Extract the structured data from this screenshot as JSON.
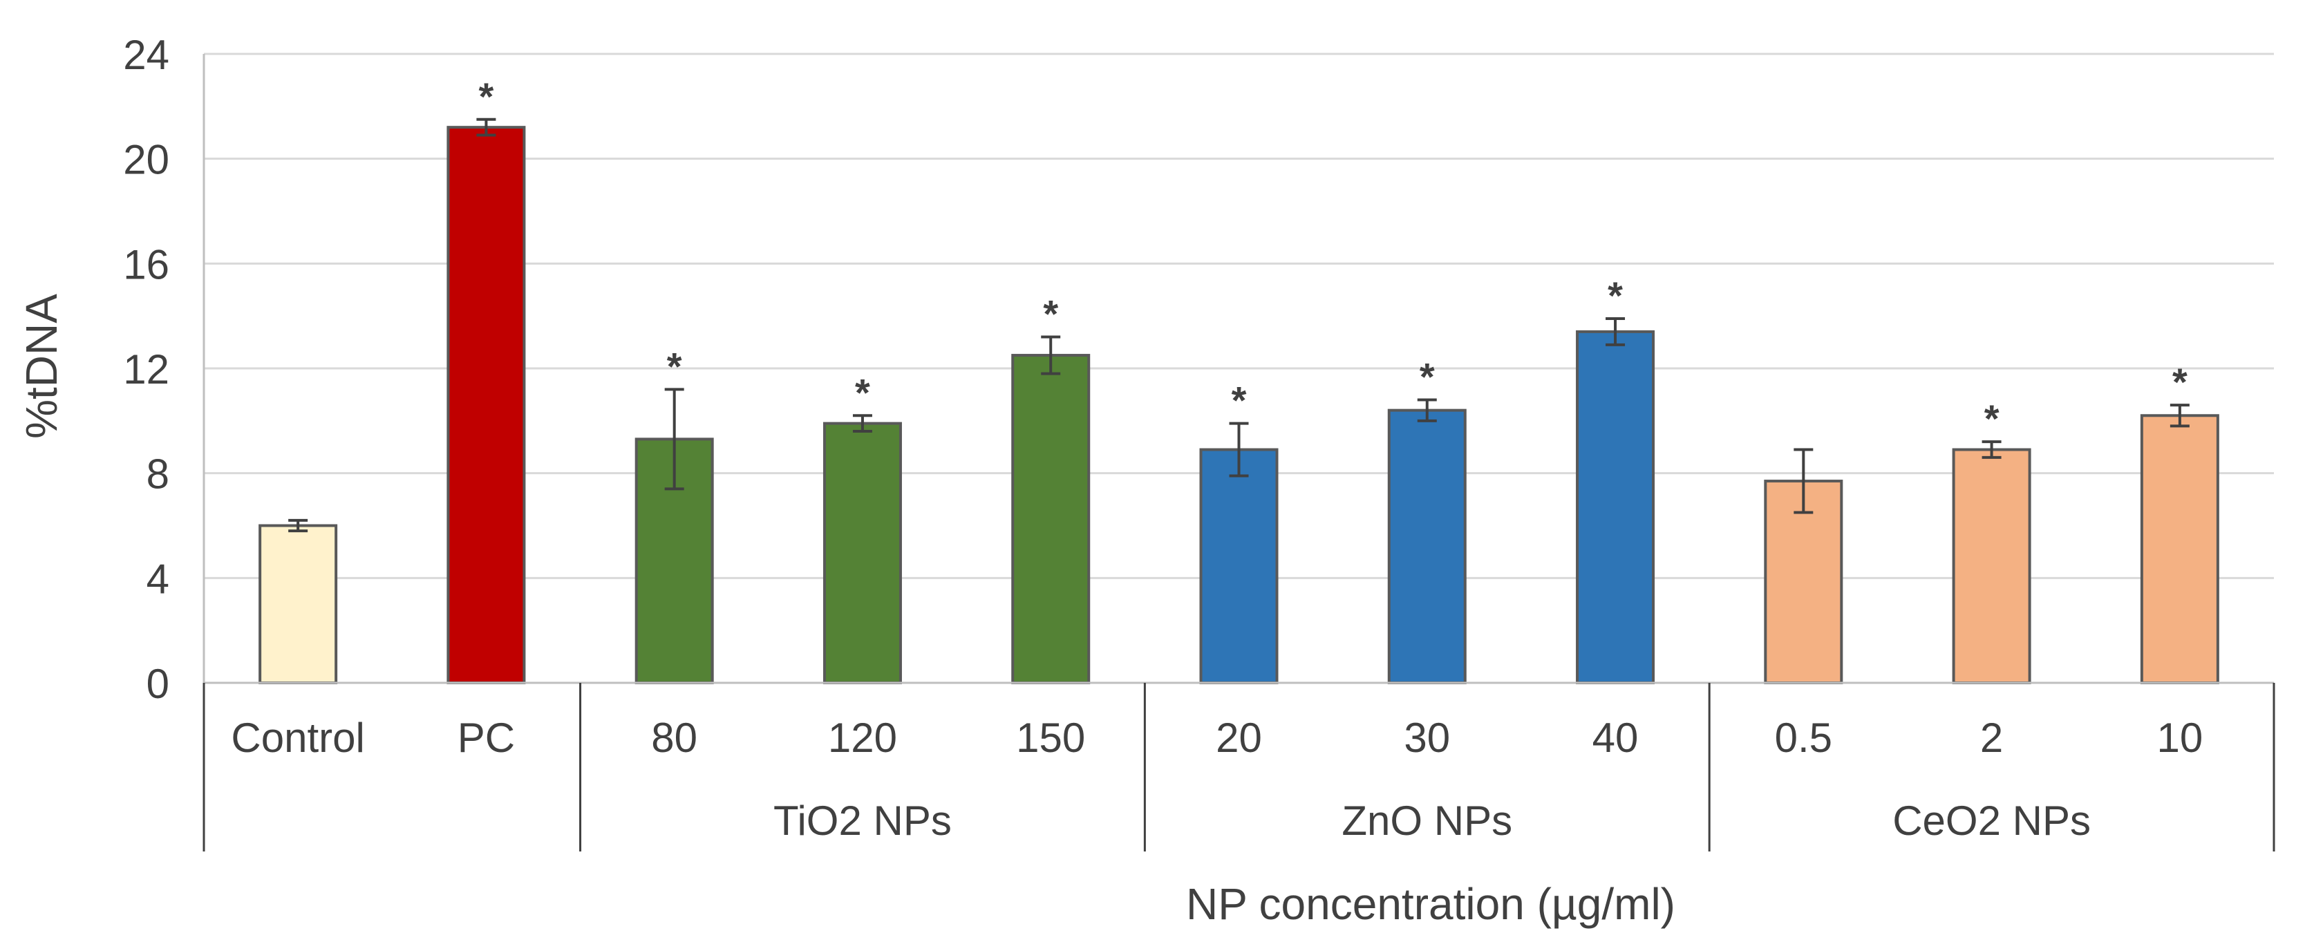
{
  "chart_data": {
    "type": "bar",
    "title": "",
    "xlabel": "NP concentration (µg/ml)",
    "ylabel": "%tDNA",
    "ylim": [
      0,
      24
    ],
    "yticks": [
      0,
      4,
      8,
      12,
      16,
      20,
      24
    ],
    "grid": true,
    "categories": [
      "Control",
      "PC",
      "80",
      "120",
      "150",
      "20",
      "30",
      "40",
      "0.5",
      "2",
      "10"
    ],
    "values": [
      6.0,
      21.2,
      9.3,
      9.9,
      12.5,
      8.9,
      10.4,
      13.4,
      7.7,
      8.9,
      10.2
    ],
    "errors": [
      0.2,
      0.3,
      1.9,
      0.3,
      0.7,
      1.0,
      0.4,
      0.5,
      1.2,
      0.3,
      0.4
    ],
    "significant": [
      false,
      true,
      true,
      true,
      true,
      true,
      true,
      true,
      false,
      true,
      true
    ],
    "significance_marker": "*",
    "bar_colors": [
      "#FFF2CC",
      "#C00000",
      "#548235",
      "#548235",
      "#548235",
      "#2E75B6",
      "#2E75B6",
      "#2E75B6",
      "#F4B183",
      "#F4B183",
      "#F4B183"
    ],
    "groups": [
      {
        "label": "",
        "start": 0,
        "end": 1
      },
      {
        "label": "TiO2 NPs",
        "start": 2,
        "end": 4
      },
      {
        "label": "ZnO NPs",
        "start": 5,
        "end": 7
      },
      {
        "label": "CeO2 NPs",
        "start": 8,
        "end": 10
      }
    ]
  }
}
